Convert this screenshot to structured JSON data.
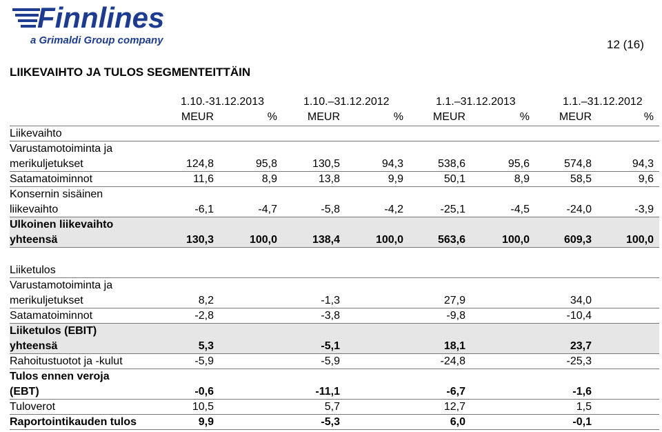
{
  "logo": {
    "name": "Finnlines",
    "tagline": "a Grimaldi Group company"
  },
  "page_number": "12 (16)",
  "title": "LIIKEVAIHTO JA TULOS SEGMENTEITTÄIN",
  "header": {
    "periods": [
      "1.10.-31.12.2013",
      "1.10.–31.12.2012",
      "1.1.–31.12.2013",
      "1.1.–31.12.2012"
    ],
    "units": [
      "MEUR",
      "%",
      "MEUR",
      "%",
      "MEUR",
      "%",
      "MEUR",
      "%"
    ]
  },
  "revenue": {
    "heading": "Liikevaihto",
    "rows": [
      {
        "label": [
          "Varustamotoiminta ja",
          "merikuljetukset"
        ],
        "values": [
          "124,8",
          "95,8",
          "130,5",
          "94,3",
          "538,6",
          "95,6",
          "574,8",
          "94,3"
        ]
      },
      {
        "label": [
          "Satamatoiminnot"
        ],
        "values": [
          "11,6",
          "8,9",
          "13,8",
          "9,9",
          "50,1",
          "8,9",
          "58,5",
          "9,6"
        ]
      },
      {
        "label": [
          "Konsernin sisäinen",
          "liikevaihto"
        ],
        "values": [
          "-6,1",
          "-4,7",
          "-5,8",
          "-4,2",
          "-25,1",
          "-4,5",
          "-24,0",
          "-3,9"
        ]
      },
      {
        "label": [
          "Ulkoinen liikevaihto",
          "yhteensä"
        ],
        "values": [
          "130,3",
          "100,0",
          "138,4",
          "100,0",
          "563,6",
          "100,0",
          "609,3",
          "100,0"
        ],
        "bold": true,
        "shaded": true
      }
    ]
  },
  "operating_result": {
    "heading": "Liiketulos",
    "rows": [
      {
        "label": [
          "Varustamotoiminta ja",
          "merikuljetukset"
        ],
        "values": [
          "8,2",
          "-1,3",
          "27,9",
          "34,0"
        ]
      },
      {
        "label": [
          "Satamatoiminnot"
        ],
        "values": [
          "-2,8",
          "-3,8",
          "-9,8",
          "-10,4"
        ]
      },
      {
        "label": [
          "Liiketulos (EBIT)",
          "yhteensä"
        ],
        "values": [
          "5,3",
          "-5,1",
          "18,1",
          "23,7"
        ],
        "bold": true,
        "shaded": true
      },
      {
        "label": [
          "Rahoitustuotot ja -kulut"
        ],
        "values": [
          "-5,9",
          "-5,9",
          "-24,8",
          "-25,3"
        ]
      },
      {
        "label": [
          "Tulos ennen veroja",
          "(EBT)"
        ],
        "values": [
          "-0,6",
          "-11,1",
          "-6,7",
          "-1,6"
        ],
        "bold": true
      },
      {
        "label": [
          "Tuloverot"
        ],
        "values": [
          "10,5",
          "5,7",
          "12,7",
          "1,5"
        ]
      },
      {
        "label": [
          "Raportointikauden tulos"
        ],
        "values": [
          "9,9",
          "-5,3",
          "6,0",
          "-0,1"
        ],
        "bold": true
      }
    ]
  }
}
